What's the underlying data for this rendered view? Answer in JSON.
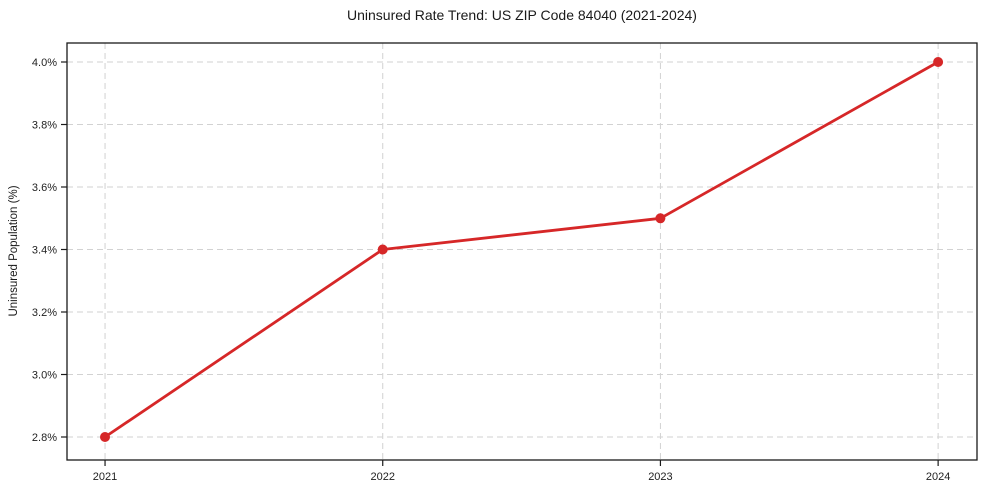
{
  "chart_data": {
    "type": "line",
    "title": "Uninsured Rate Trend: US ZIP Code 84040 (2021-2024)",
    "xlabel": "",
    "ylabel": "Uninsured Population (%)",
    "x": [
      2021,
      2022,
      2023,
      2024
    ],
    "x_tick_labels": [
      "2021",
      "2022",
      "2023",
      "2024"
    ],
    "series": [
      {
        "name": "uninsured-rate",
        "values": [
          2.8,
          3.4,
          3.5,
          4.0
        ]
      }
    ],
    "y_ticks": [
      2.8,
      3.0,
      3.2,
      3.4,
      3.6,
      3.8,
      4.0
    ],
    "y_tick_labels": [
      "2.8%",
      "3.0%",
      "3.2%",
      "3.4%",
      "3.6%",
      "3.8%",
      "4.0%"
    ],
    "xlim": [
      2020.863,
      2024.14
    ],
    "ylim": [
      2.7264,
      4.0608
    ],
    "grid": true,
    "legend_position": "none",
    "colors": {
      "line": "#d62728",
      "marker": "#d62728",
      "grid": "#d2d2d2",
      "axis": "#1a1a1a",
      "text": "#1f1f1f",
      "background": "#ffffff"
    }
  }
}
